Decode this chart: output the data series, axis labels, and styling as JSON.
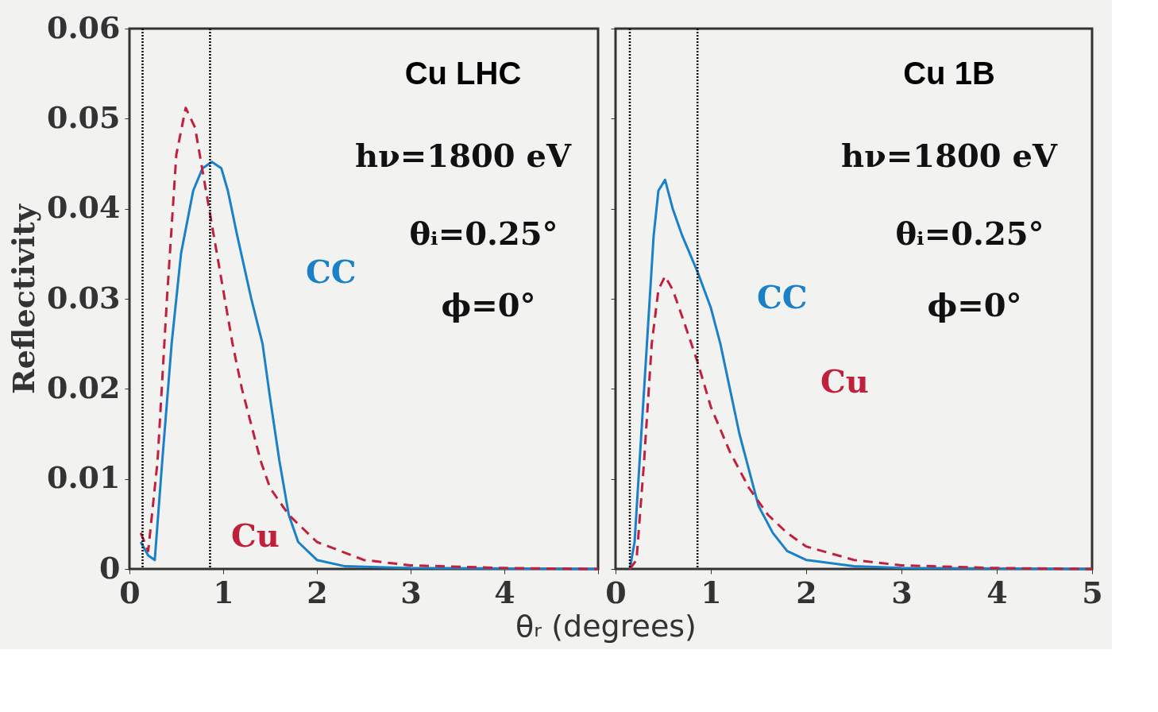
{
  "chart_data": [
    {
      "type": "line",
      "title": "Cu LHC",
      "ylabel": "Reflectivity",
      "xlabel": "θᵣ (degrees)",
      "xlim": [
        0,
        5
      ],
      "xticks": [
        0,
        1,
        2,
        3,
        4,
        {
          "value": 5,
          "label": null
        }
      ],
      "ylim": [
        0,
        0.06
      ],
      "yticks": [
        0,
        0.01,
        0.02,
        0.03,
        0.04,
        0.05,
        0.06
      ],
      "grid": false,
      "legend": false,
      "marker": "none",
      "tick_labels": "xy",
      "annotations": [
        "hν=1800 eV",
        "θᵢ=0.25°",
        "ϕ=0°"
      ],
      "ref_lines": [
        {
          "axis": "x",
          "value": 0.14,
          "color": "#000000",
          "line_style": "dotted"
        },
        {
          "axis": "x",
          "value": 0.86,
          "color": "#000000",
          "line_style": "dotted"
        }
      ],
      "series": [
        {
          "name": "CC",
          "color": "#1a80c8",
          "line_style": "solid",
          "x": [
            0.12,
            0.2,
            0.27,
            0.35,
            0.45,
            0.55,
            0.68,
            0.78,
            0.88,
            0.98,
            1.05,
            1.15,
            1.3,
            1.42,
            1.5,
            1.6,
            1.7,
            1.8,
            2.0,
            2.3,
            3,
            5
          ],
          "values": [
            0.003,
            0.0015,
            0.001,
            0.012,
            0.025,
            0.035,
            0.042,
            0.0445,
            0.0452,
            0.0445,
            0.042,
            0.037,
            0.03,
            0.025,
            0.019,
            0.012,
            0.006,
            0.003,
            0.001,
            0.0003,
            0.0001,
            0
          ]
        },
        {
          "name": "Cu",
          "color": "#c0203c",
          "line_style": "dashed",
          "x": [
            0.12,
            0.2,
            0.3,
            0.4,
            0.5,
            0.6,
            0.7,
            0.8,
            0.9,
            1.0,
            1.1,
            1.2,
            1.3,
            1.4,
            1.5,
            1.7,
            2.0,
            2.5,
            3,
            4,
            5
          ],
          "values": [
            0.004,
            0.002,
            0.012,
            0.03,
            0.046,
            0.0512,
            0.049,
            0.043,
            0.037,
            0.031,
            0.025,
            0.02,
            0.016,
            0.012,
            0.009,
            0.006,
            0.003,
            0.001,
            0.0004,
            0.0001,
            0
          ]
        }
      ]
    },
    {
      "type": "line",
      "title": "Cu 1B",
      "xlim": [
        0,
        5
      ],
      "xticks": [
        0,
        1,
        2,
        3,
        4,
        5
      ],
      "ylim": [
        0,
        0.06
      ],
      "yticks": [
        0,
        0.01,
        0.02,
        0.03,
        0.04,
        0.05,
        0.06
      ],
      "grid": false,
      "legend": false,
      "marker": "none",
      "tick_labels": "x",
      "annotations": [
        "hν=1800 eV",
        "θᵢ=0.25°",
        "ϕ=0°"
      ],
      "ref_lines": [
        {
          "axis": "x",
          "value": 0.15,
          "color": "#000000",
          "line_style": "dotted"
        },
        {
          "axis": "x",
          "value": 0.86,
          "color": "#000000",
          "line_style": "dotted"
        }
      ],
      "series": [
        {
          "name": "CC",
          "color": "#1a80c8",
          "line_style": "solid",
          "x": [
            0.15,
            0.2,
            0.3,
            0.4,
            0.45,
            0.52,
            0.6,
            0.7,
            0.86,
            1.0,
            1.1,
            1.2,
            1.3,
            1.4,
            1.5,
            1.65,
            1.8,
            2.0,
            2.5,
            3,
            5
          ],
          "values": [
            0,
            0.003,
            0.02,
            0.037,
            0.042,
            0.0432,
            0.04,
            0.037,
            0.033,
            0.029,
            0.025,
            0.02,
            0.015,
            0.011,
            0.007,
            0.004,
            0.002,
            0.001,
            0.0003,
            0.0001,
            0
          ]
        },
        {
          "name": "Cu",
          "color": "#c0203c",
          "line_style": "dashed",
          "x": [
            0.15,
            0.22,
            0.3,
            0.38,
            0.45,
            0.52,
            0.6,
            0.7,
            0.86,
            1.0,
            1.2,
            1.4,
            1.6,
            1.8,
            2.0,
            2.5,
            3,
            4,
            5
          ],
          "values": [
            0,
            0.001,
            0.012,
            0.025,
            0.031,
            0.0325,
            0.031,
            0.028,
            0.023,
            0.018,
            0.013,
            0.009,
            0.006,
            0.004,
            0.0025,
            0.001,
            0.0004,
            0.0001,
            0
          ]
        }
      ]
    }
  ]
}
